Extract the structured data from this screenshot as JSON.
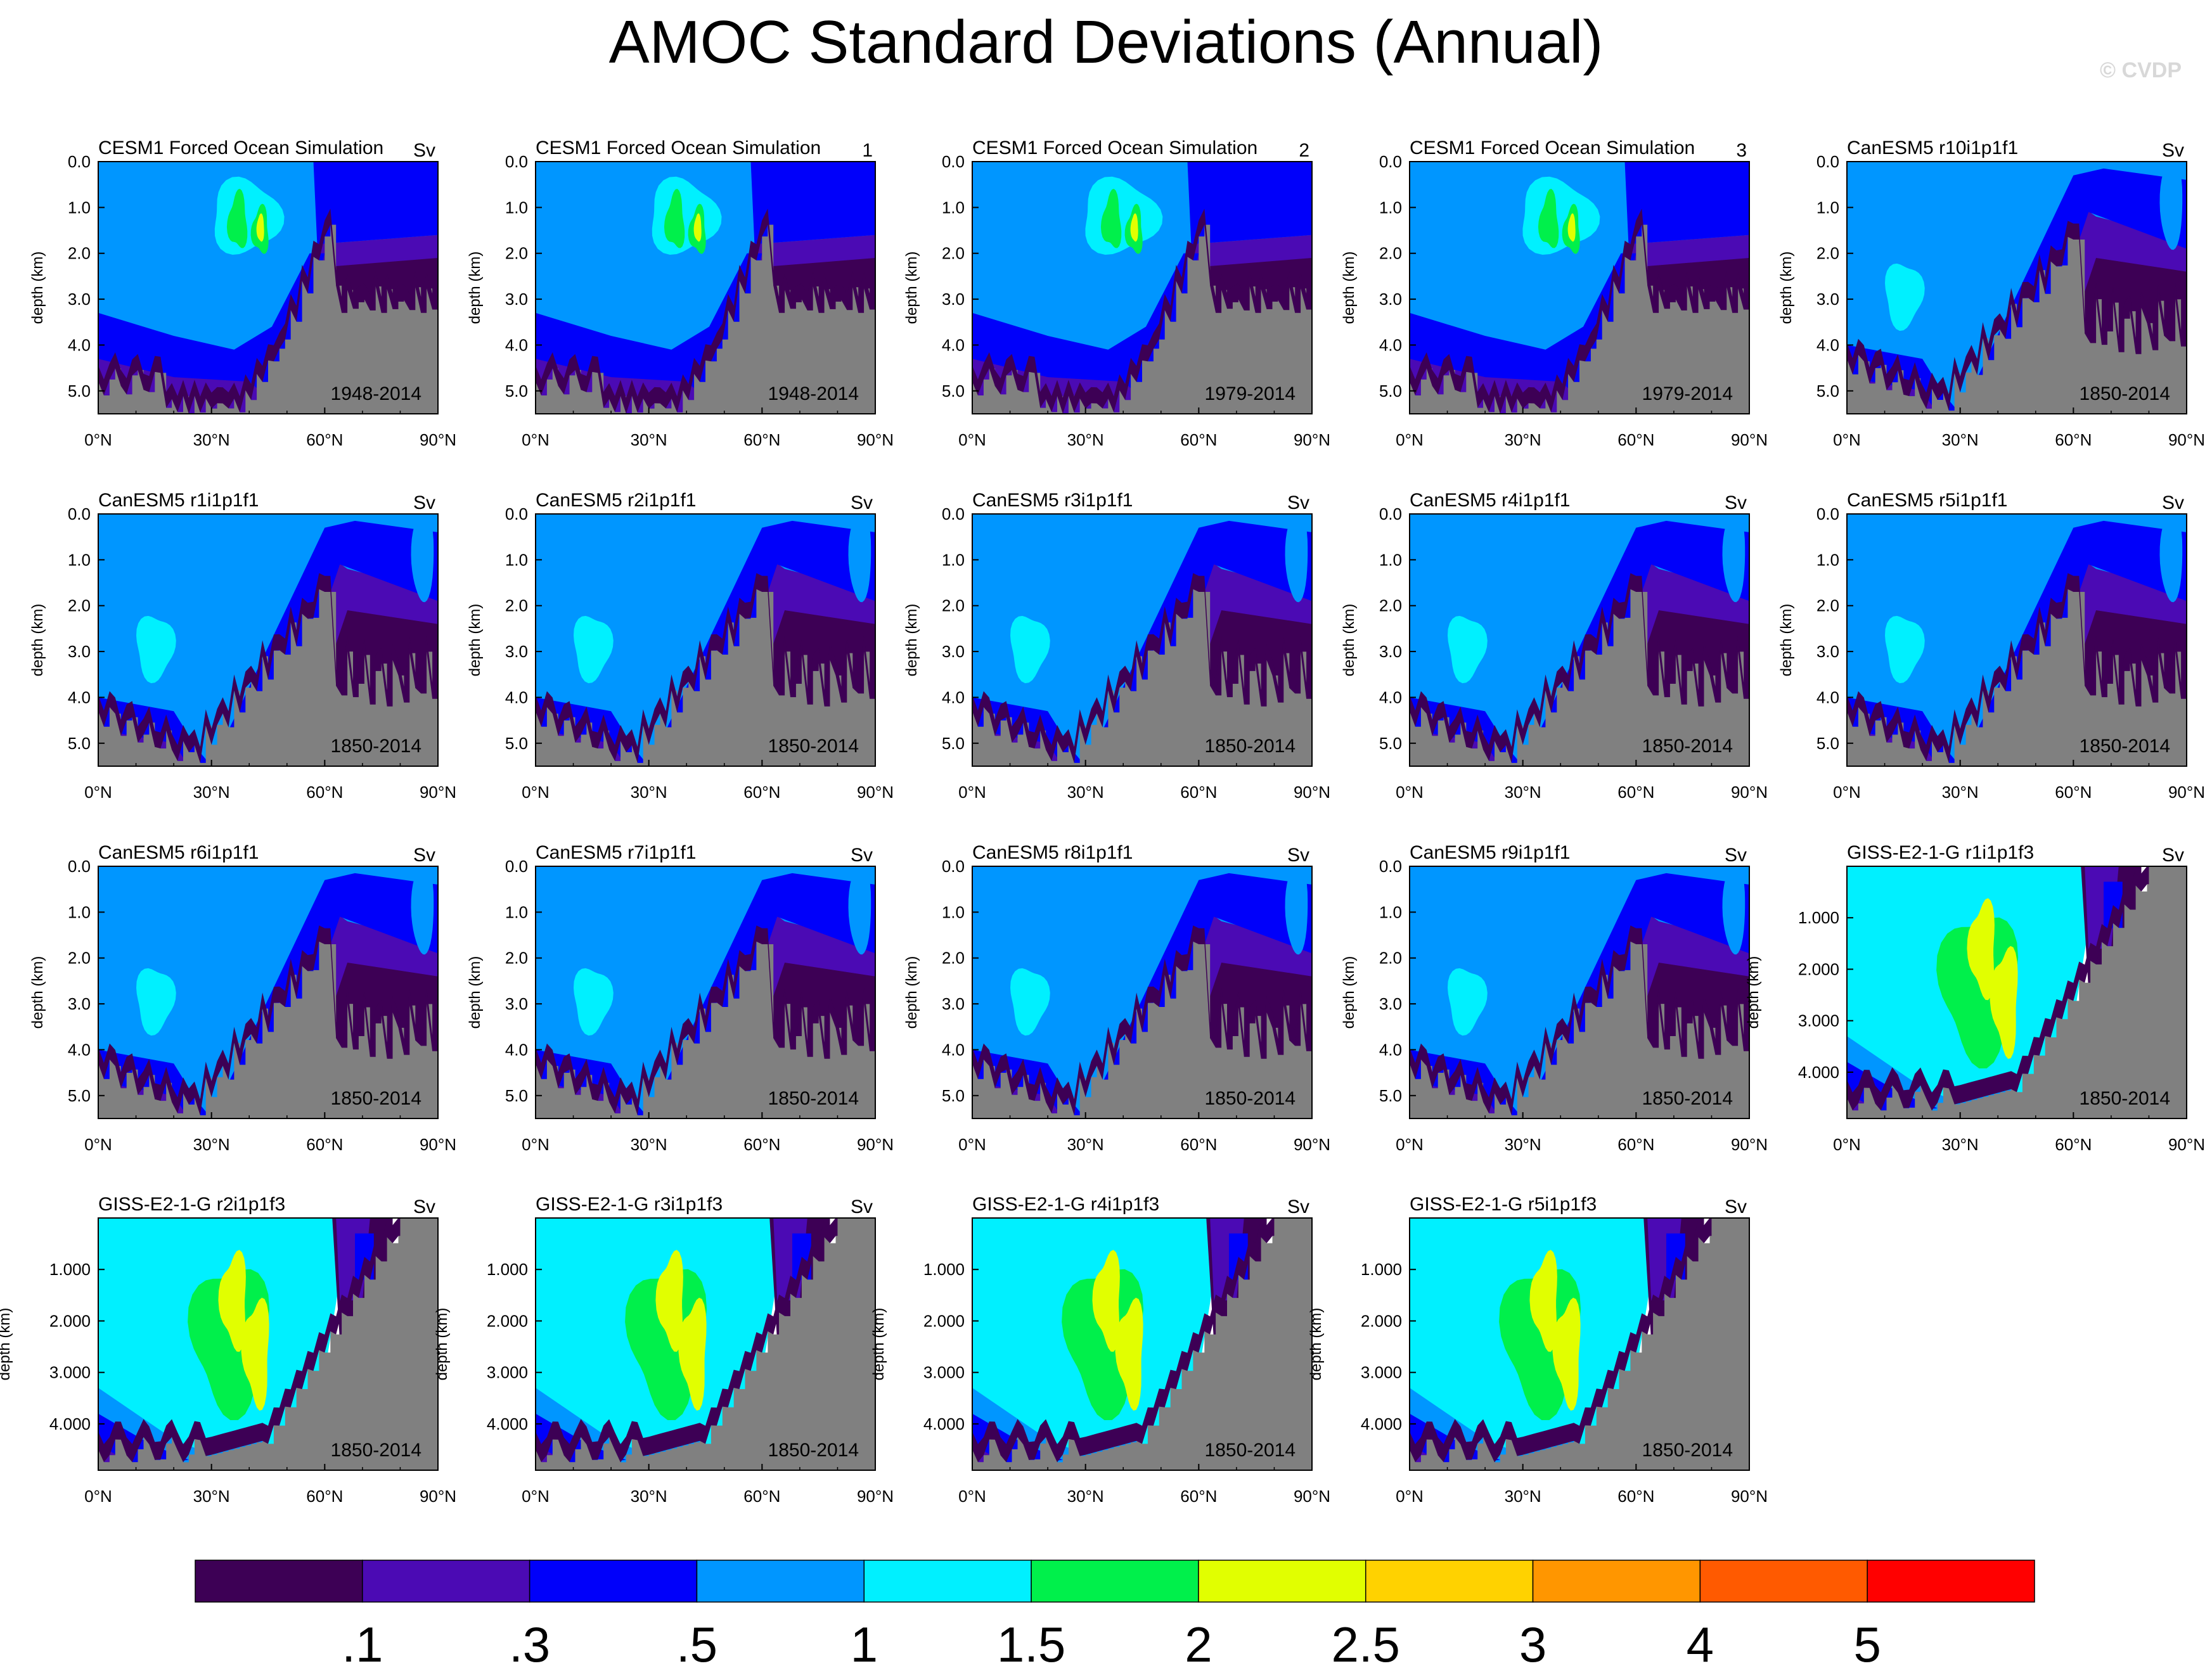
{
  "title": "AMOC Standard Deviations (Annual)",
  "credit": "© CVDP",
  "units": "Sv",
  "xlabel": "",
  "ylabel": "depth (km)",
  "x_ticks": [
    "0°N",
    "30°N",
    "60°N",
    "90°N"
  ],
  "colorbar": {
    "labels": [
      ".1",
      ".3",
      ".5",
      "1",
      "1.5",
      "2",
      "2.5",
      "3",
      "4",
      "5"
    ],
    "colors": [
      "#3d0055",
      "#4b0ab4",
      "#0000fa",
      "#0096ff",
      "#00f0ff",
      "#00f04b",
      "#e1ff00",
      "#ffd200",
      "#ff9600",
      "#ff5a00",
      "#ff0000"
    ]
  },
  "chart_data": [
    {
      "type": "heatmap",
      "title": "CESM1 Forced Ocean Simulation",
      "title_suffix": "Sv",
      "period": "1948-2014",
      "model": "cesm",
      "ylim": [
        0,
        5.5
      ],
      "y_ticks": [
        "0.0",
        "1.0",
        "2.0",
        "3.0",
        "4.0",
        "5.0"
      ],
      "y_values": [
        0,
        1,
        2,
        3,
        4,
        5
      ]
    },
    {
      "type": "heatmap",
      "title": "CESM1 Forced Ocean Simulation",
      "title_suffix": "1",
      "period": "1948-2014",
      "model": "cesm",
      "ylim": [
        0,
        5.5
      ],
      "y_ticks": [
        "0.0",
        "1.0",
        "2.0",
        "3.0",
        "4.0",
        "5.0"
      ],
      "y_values": [
        0,
        1,
        2,
        3,
        4,
        5
      ]
    },
    {
      "type": "heatmap",
      "title": "CESM1 Forced Ocean Simulation",
      "title_suffix": "2",
      "period": "1979-2014",
      "model": "cesm2",
      "ylim": [
        0,
        5.5
      ],
      "y_ticks": [
        "0.0",
        "1.0",
        "2.0",
        "3.0",
        "4.0",
        "5.0"
      ],
      "y_values": [
        0,
        1,
        2,
        3,
        4,
        5
      ]
    },
    {
      "type": "heatmap",
      "title": "CESM1 Forced Ocean Simulation",
      "title_suffix": "3",
      "period": "1979-2014",
      "model": "cesm2",
      "ylim": [
        0,
        5.5
      ],
      "y_ticks": [
        "0.0",
        "1.0",
        "2.0",
        "3.0",
        "4.0",
        "5.0"
      ],
      "y_values": [
        0,
        1,
        2,
        3,
        4,
        5
      ]
    },
    {
      "type": "heatmap",
      "title": "CanESM5 r10i1p1f1",
      "title_suffix": "Sv",
      "period": "1850-2014",
      "model": "can",
      "ylim": [
        0,
        5.5
      ],
      "y_ticks": [
        "0.0",
        "1.0",
        "2.0",
        "3.0",
        "4.0",
        "5.0"
      ],
      "y_values": [
        0,
        1,
        2,
        3,
        4,
        5
      ]
    },
    {
      "type": "heatmap",
      "title": "CanESM5 r1i1p1f1",
      "title_suffix": "Sv",
      "period": "1850-2014",
      "model": "can",
      "ylim": [
        0,
        5.5
      ],
      "y_ticks": [
        "0.0",
        "1.0",
        "2.0",
        "3.0",
        "4.0",
        "5.0"
      ],
      "y_values": [
        0,
        1,
        2,
        3,
        4,
        5
      ]
    },
    {
      "type": "heatmap",
      "title": "CanESM5 r2i1p1f1",
      "title_suffix": "Sv",
      "period": "1850-2014",
      "model": "can",
      "ylim": [
        0,
        5.5
      ],
      "y_ticks": [
        "0.0",
        "1.0",
        "2.0",
        "3.0",
        "4.0",
        "5.0"
      ],
      "y_values": [
        0,
        1,
        2,
        3,
        4,
        5
      ]
    },
    {
      "type": "heatmap",
      "title": "CanESM5 r3i1p1f1",
      "title_suffix": "Sv",
      "period": "1850-2014",
      "model": "can",
      "ylim": [
        0,
        5.5
      ],
      "y_ticks": [
        "0.0",
        "1.0",
        "2.0",
        "3.0",
        "4.0",
        "5.0"
      ],
      "y_values": [
        0,
        1,
        2,
        3,
        4,
        5
      ]
    },
    {
      "type": "heatmap",
      "title": "CanESM5 r4i1p1f1",
      "title_suffix": "Sv",
      "period": "1850-2014",
      "model": "can",
      "ylim": [
        0,
        5.5
      ],
      "y_ticks": [
        "0.0",
        "1.0",
        "2.0",
        "3.0",
        "4.0",
        "5.0"
      ],
      "y_values": [
        0,
        1,
        2,
        3,
        4,
        5
      ]
    },
    {
      "type": "heatmap",
      "title": "CanESM5 r5i1p1f1",
      "title_suffix": "Sv",
      "period": "1850-2014",
      "model": "can",
      "ylim": [
        0,
        5.5
      ],
      "y_ticks": [
        "0.0",
        "1.0",
        "2.0",
        "3.0",
        "4.0",
        "5.0"
      ],
      "y_values": [
        0,
        1,
        2,
        3,
        4,
        5
      ]
    },
    {
      "type": "heatmap",
      "title": "CanESM5 r6i1p1f1",
      "title_suffix": "Sv",
      "period": "1850-2014",
      "model": "can",
      "ylim": [
        0,
        5.5
      ],
      "y_ticks": [
        "0.0",
        "1.0",
        "2.0",
        "3.0",
        "4.0",
        "5.0"
      ],
      "y_values": [
        0,
        1,
        2,
        3,
        4,
        5
      ]
    },
    {
      "type": "heatmap",
      "title": "CanESM5 r7i1p1f1",
      "title_suffix": "Sv",
      "period": "1850-2014",
      "model": "can",
      "ylim": [
        0,
        5.5
      ],
      "y_ticks": [
        "0.0",
        "1.0",
        "2.0",
        "3.0",
        "4.0",
        "5.0"
      ],
      "y_values": [
        0,
        1,
        2,
        3,
        4,
        5
      ]
    },
    {
      "type": "heatmap",
      "title": "CanESM5 r8i1p1f1",
      "title_suffix": "Sv",
      "period": "1850-2014",
      "model": "can",
      "ylim": [
        0,
        5.5
      ],
      "y_ticks": [
        "0.0",
        "1.0",
        "2.0",
        "3.0",
        "4.0",
        "5.0"
      ],
      "y_values": [
        0,
        1,
        2,
        3,
        4,
        5
      ]
    },
    {
      "type": "heatmap",
      "title": "CanESM5 r9i1p1f1",
      "title_suffix": "Sv",
      "period": "1850-2014",
      "model": "can",
      "ylim": [
        0,
        5.5
      ],
      "y_ticks": [
        "0.0",
        "1.0",
        "2.0",
        "3.0",
        "4.0",
        "5.0"
      ],
      "y_values": [
        0,
        1,
        2,
        3,
        4,
        5
      ]
    },
    {
      "type": "heatmap",
      "title": "GISS-E2-1-G r1i1p1f3",
      "title_suffix": "Sv",
      "period": "1850-2014",
      "model": "giss",
      "ylim": [
        0,
        4.9
      ],
      "y_ticks": [
        "1.000",
        "2.000",
        "3.000",
        "4.000"
      ],
      "y_values": [
        1,
        2,
        3,
        4
      ]
    },
    {
      "type": "heatmap",
      "title": "GISS-E2-1-G r2i1p1f3",
      "title_suffix": "Sv",
      "period": "1850-2014",
      "model": "giss",
      "ylim": [
        0,
        4.9
      ],
      "y_ticks": [
        "1.000",
        "2.000",
        "3.000",
        "4.000"
      ],
      "y_values": [
        1,
        2,
        3,
        4
      ]
    },
    {
      "type": "heatmap",
      "title": "GISS-E2-1-G r3i1p1f3",
      "title_suffix": "Sv",
      "period": "1850-2014",
      "model": "giss",
      "ylim": [
        0,
        4.9
      ],
      "y_ticks": [
        "1.000",
        "2.000",
        "3.000",
        "4.000"
      ],
      "y_values": [
        1,
        2,
        3,
        4
      ]
    },
    {
      "type": "heatmap",
      "title": "GISS-E2-1-G r4i1p1f3",
      "title_suffix": "Sv",
      "period": "1850-2014",
      "model": "giss",
      "ylim": [
        0,
        4.9
      ],
      "y_ticks": [
        "1.000",
        "2.000",
        "3.000",
        "4.000"
      ],
      "y_values": [
        1,
        2,
        3,
        4
      ]
    },
    {
      "type": "heatmap",
      "title": "GISS-E2-1-G r5i1p1f3",
      "title_suffix": "Sv",
      "period": "1850-2014",
      "model": "giss",
      "ylim": [
        0,
        4.9
      ],
      "y_ticks": [
        "1.000",
        "2.000",
        "3.000",
        "4.000"
      ],
      "y_values": [
        1,
        2,
        3,
        4
      ]
    }
  ]
}
